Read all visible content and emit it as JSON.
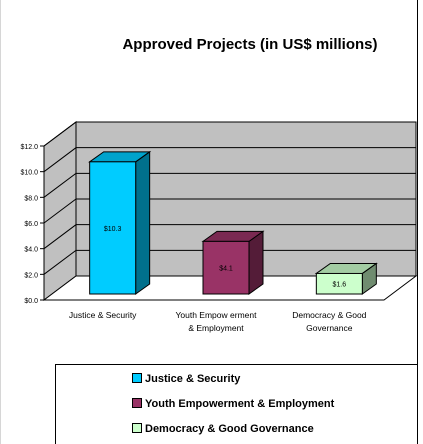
{
  "chart_data": {
    "type": "bar",
    "title": "Approved Projects (in US$ millions)",
    "categories": [
      "Justice & Security",
      "Youth Empowerment & Employment",
      "Democracy & Good Governance"
    ],
    "category_label_lines": [
      [
        "Justice & Security"
      ],
      [
        "Youth Empow erment",
        "& Employment"
      ],
      [
        "Democracy & Good",
        "Governance"
      ]
    ],
    "values": [
      10.3,
      4.1,
      1.6
    ],
    "data_labels": [
      "$10.3",
      "$4.1",
      "$1.6"
    ],
    "yticks": [
      "$0.0",
      "$2.0",
      "$4.0",
      "$6.0",
      "$8.0",
      "$10.0",
      "$12.0"
    ],
    "ylim": [
      0,
      12
    ],
    "grid": true,
    "three_d": true,
    "legend_position": "bottom",
    "colors": [
      "#00ccff",
      "#993366",
      "#ccffcc"
    ],
    "legend": [
      {
        "label": "Justice & Security",
        "color": "#00ccff"
      },
      {
        "label": "Youth Empowerment & Employment",
        "color": "#993366"
      },
      {
        "label": "Democracy & Good Governance",
        "color": "#ccffcc"
      }
    ]
  }
}
